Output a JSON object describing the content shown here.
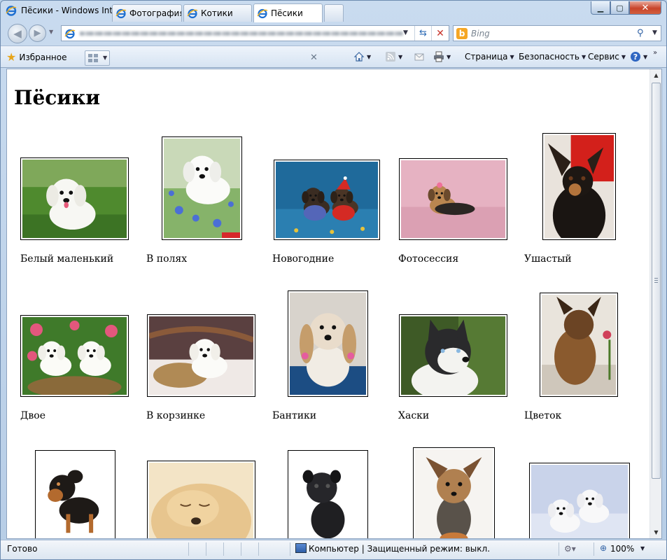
{
  "window": {
    "title": "Пёсики - Windows Internet Explorer"
  },
  "navigation": {
    "address": "",
    "search_placeholder": "Bing"
  },
  "toolbar": {
    "favorites_label": "Избранное",
    "tabs": [
      {
        "label": "Фотография",
        "active": false
      },
      {
        "label": "Котики",
        "active": false
      },
      {
        "label": "Пёсики",
        "active": true
      }
    ],
    "page_label": "Страница",
    "safety_label": "Безопасность",
    "tools_label": "Сервис"
  },
  "page": {
    "heading": "Пёсики",
    "gallery": [
      {
        "caption": "Белый маленький",
        "scene": "white-puppy-grass"
      },
      {
        "caption": "В полях",
        "scene": "puppy-flowers"
      },
      {
        "caption": "Новогодние",
        "scene": "new-year-dogs"
      },
      {
        "caption": "Фотосессия",
        "scene": "yorkie-pink"
      },
      {
        "caption": "Ушастый",
        "scene": "eared-dog-red"
      },
      {
        "caption": "Двое",
        "scene": "two-puppies-basket"
      },
      {
        "caption": "В корзинке",
        "scene": "puppy-in-basket"
      },
      {
        "caption": "Бантики",
        "scene": "shihtzu-bows"
      },
      {
        "caption": "Хаски",
        "scene": "husky"
      },
      {
        "caption": "Цветок",
        "scene": "yorkie-flower"
      },
      {
        "caption": "",
        "scene": "doberman-puppy"
      },
      {
        "caption": "",
        "scene": "golden-puppy-sleep"
      },
      {
        "caption": "",
        "scene": "black-pug"
      },
      {
        "caption": "",
        "scene": "yorkie-portrait"
      },
      {
        "caption": "",
        "scene": "white-puppies-kiss"
      }
    ]
  },
  "status": {
    "text": "Готово",
    "zone": "Компьютер | Защищенный режим: выкл.",
    "zoom": "100%"
  }
}
